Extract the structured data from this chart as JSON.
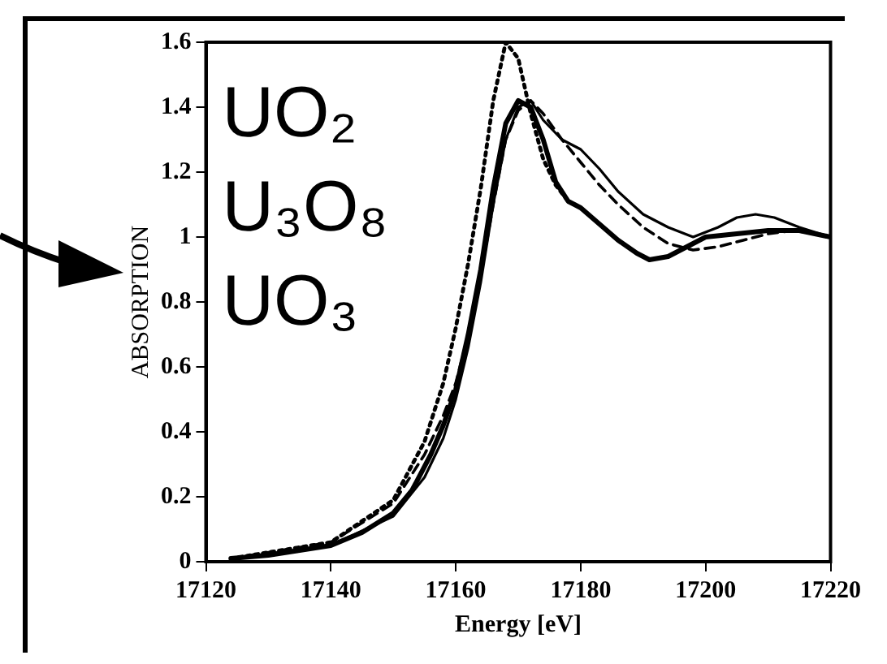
{
  "chart_data": {
    "type": "line",
    "xlabel": "Energy [eV]",
    "ylabel": "ABSORPTION",
    "xlim": [
      17120,
      17220
    ],
    "xticks": [
      17120,
      17140,
      17160,
      17180,
      17200,
      17220
    ],
    "ylim": [
      0,
      1.6
    ],
    "yticks": [
      0,
      0.2,
      0.4,
      0.6,
      0.8,
      1,
      1.2,
      1.4,
      1.6
    ],
    "grid": false,
    "legend": false,
    "marker": "none",
    "annotations": [
      "UO₂",
      "U₃O₈",
      "UO₃"
    ],
    "series": [
      {
        "color": "#000000",
        "line_style": "solid",
        "x": [
          17124,
          17130,
          17140,
          17145,
          17150,
          17153,
          17156,
          17158,
          17160,
          17162,
          17164,
          17166,
          17168,
          17170,
          17172,
          17174,
          17176,
          17178,
          17180,
          17183,
          17186,
          17189,
          17191,
          17194,
          17197,
          17200,
          17205,
          17210,
          17215,
          17220
        ],
        "values": [
          0.01,
          0.02,
          0.05,
          0.09,
          0.15,
          0.22,
          0.33,
          0.42,
          0.53,
          0.7,
          0.9,
          1.15,
          1.35,
          1.42,
          1.4,
          1.3,
          1.17,
          1.11,
          1.09,
          1.04,
          0.99,
          0.95,
          0.93,
          0.94,
          0.97,
          1.0,
          1.01,
          1.02,
          1.02,
          1.0
        ]
      },
      {
        "color": "#000000",
        "line_style": "solid",
        "x": [
          17124,
          17140,
          17150,
          17155,
          17158,
          17160,
          17162,
          17164,
          17166,
          17168,
          17170,
          17172,
          17174,
          17177,
          17180,
          17183,
          17186,
          17190,
          17194,
          17198,
          17202,
          17205,
          17208,
          17211,
          17215,
          17220
        ],
        "values": [
          0.01,
          0.05,
          0.14,
          0.26,
          0.38,
          0.5,
          0.66,
          0.86,
          1.1,
          1.3,
          1.4,
          1.42,
          1.36,
          1.3,
          1.27,
          1.21,
          1.14,
          1.07,
          1.03,
          1.0,
          1.03,
          1.06,
          1.07,
          1.06,
          1.03,
          1.0
        ]
      },
      {
        "color": "#000000",
        "line_style": "dashed",
        "x": [
          17124,
          17140,
          17150,
          17155,
          17158,
          17160,
          17162,
          17164,
          17166,
          17168,
          17170,
          17172,
          17174,
          17177,
          17180,
          17183,
          17186,
          17190,
          17194,
          17198,
          17202,
          17206,
          17210,
          17214,
          17218,
          17220
        ],
        "values": [
          0.01,
          0.06,
          0.18,
          0.33,
          0.45,
          0.55,
          0.7,
          0.88,
          1.1,
          1.3,
          1.39,
          1.42,
          1.38,
          1.3,
          1.23,
          1.16,
          1.1,
          1.03,
          0.98,
          0.96,
          0.97,
          0.99,
          1.01,
          1.02,
          1.01,
          1.0
        ]
      },
      {
        "color": "#000000",
        "line_style": "dotted",
        "x": [
          17124,
          17140,
          17150,
          17155,
          17158,
          17160,
          17162,
          17164,
          17166,
          17168,
          17170,
          17172,
          17174,
          17176,
          17178
        ],
        "values": [
          0.01,
          0.06,
          0.19,
          0.37,
          0.55,
          0.72,
          0.92,
          1.15,
          1.42,
          1.6,
          1.55,
          1.38,
          1.24,
          1.16,
          1.11
        ]
      }
    ]
  }
}
